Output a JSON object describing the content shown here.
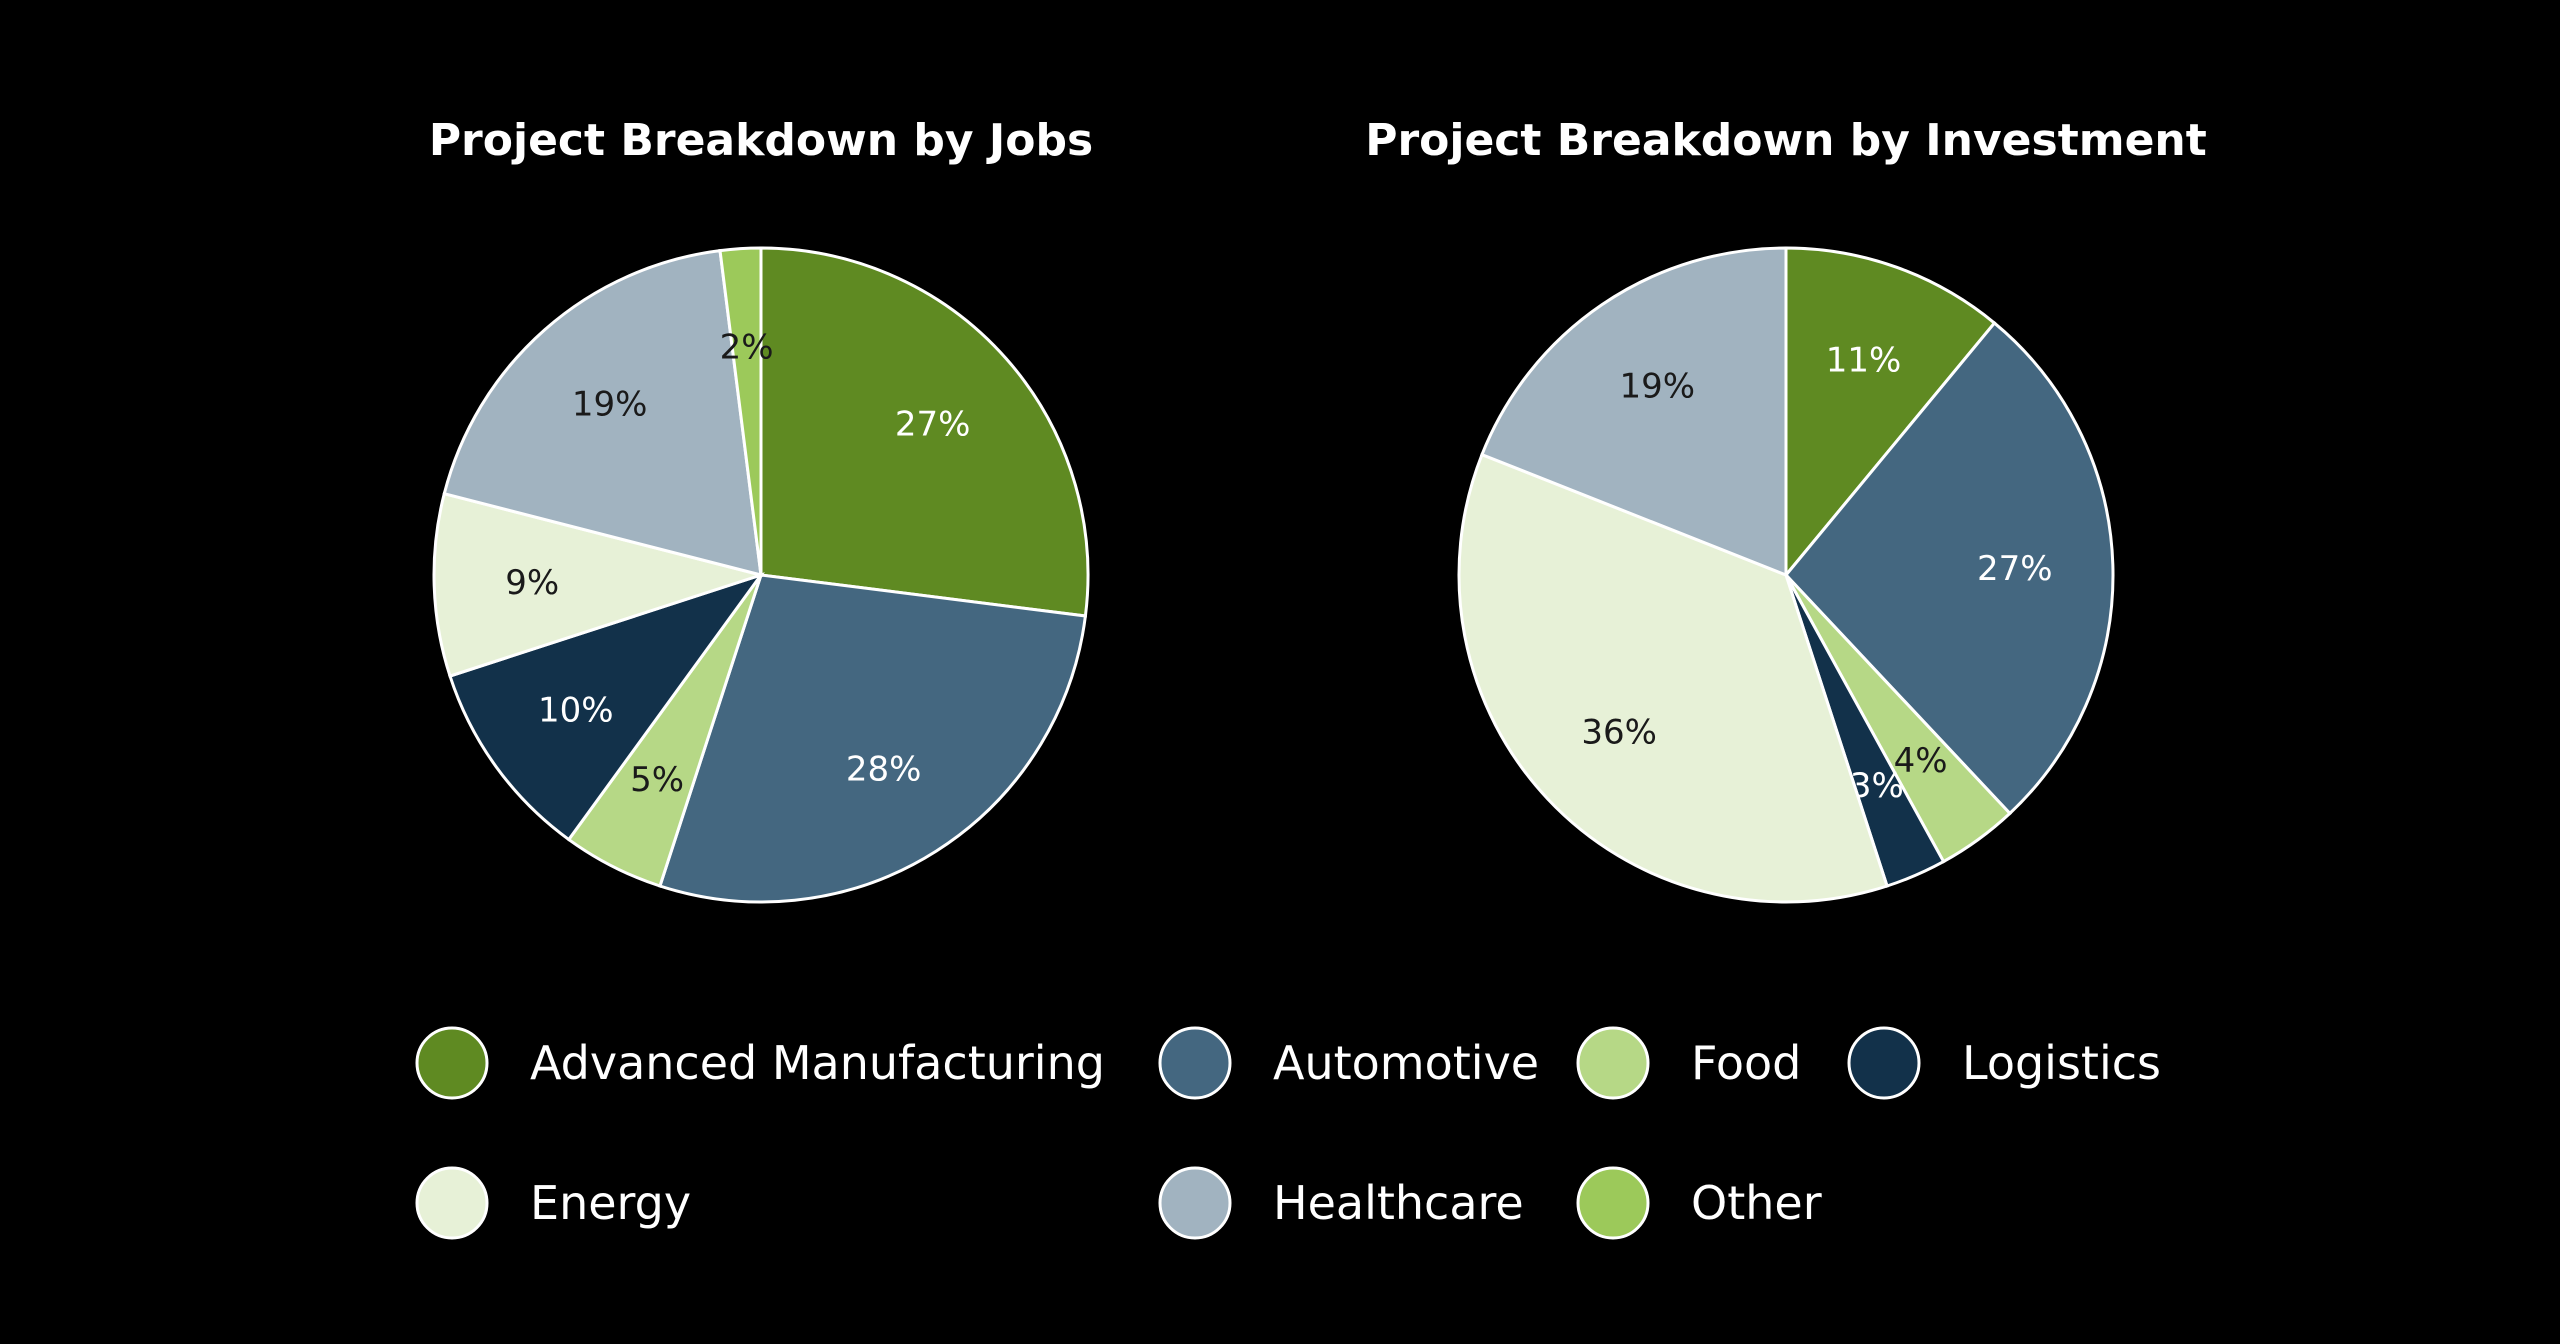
{
  "chart_data": [
    {
      "type": "pie",
      "title": "Project Breakdown by Jobs",
      "categories": [
        "Advanced Manufacturing",
        "Automotive",
        "Food",
        "Logistics",
        "Energy",
        "Healthcare",
        "Other"
      ],
      "values": [
        27,
        28,
        5,
        10,
        9,
        19,
        2
      ],
      "labels": [
        "27%",
        "28%",
        "5%",
        "10%",
        "9%",
        "19%",
        "2%"
      ],
      "start": "top",
      "direction": "clockwise"
    },
    {
      "type": "pie",
      "title": "Project Breakdown by Investment",
      "categories": [
        "Advanced Manufacturing",
        "Automotive",
        "Food",
        "Logistics",
        "Energy",
        "Healthcare",
        "Other"
      ],
      "values": [
        11,
        27,
        4,
        3,
        36,
        19,
        0
      ],
      "labels": [
        "11%",
        "27%",
        "4%",
        "3%",
        "36%",
        "19%",
        ""
      ],
      "start": "top",
      "direction": "clockwise"
    }
  ],
  "legend": {
    "placement": "bottom",
    "items": [
      {
        "label": "Advanced Manufacturing",
        "color": "#5f8a22",
        "text_dark": false
      },
      {
        "label": "Automotive",
        "color": "#446780",
        "text_dark": false
      },
      {
        "label": "Food",
        "color": "#b6d886",
        "text_dark": true
      },
      {
        "label": "Logistics",
        "color": "#12314a",
        "text_dark": false
      },
      {
        "label": "Energy",
        "color": "#e7f1d7",
        "text_dark": true
      },
      {
        "label": "Healthcare",
        "color": "#a1b3c0",
        "text_dark": true
      },
      {
        "label": "Other",
        "color": "#9cc95a",
        "text_dark": true
      }
    ]
  },
  "colors": {
    "background": "#000000",
    "slice_border": "#ffffff",
    "label_light": "#ffffff",
    "label_dark": "#1a1a1a"
  }
}
